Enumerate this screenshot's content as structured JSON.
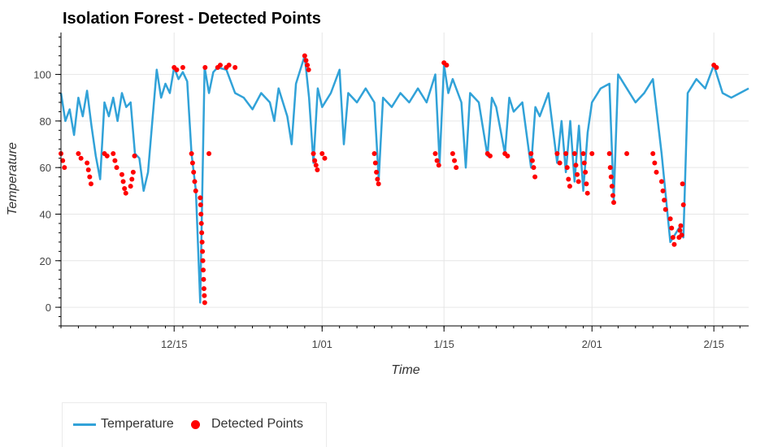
{
  "chart_data": {
    "type": "line",
    "title": "Isolation Forest - Detected Points",
    "xlabel": "Time",
    "ylabel": "Temperature",
    "x_tick_labels": [
      "12/15",
      "1/01",
      "1/15",
      "2/01",
      "2/15"
    ],
    "x_tick_dates": [
      "2013-12-15",
      "2014-01-01",
      "2014-01-15",
      "2014-02-01",
      "2014-02-15"
    ],
    "xlim": [
      "2013-12-02",
      "2014-02-19"
    ],
    "y_ticks": [
      0,
      20,
      40,
      60,
      80,
      100
    ],
    "ylim": [
      -8,
      118
    ],
    "grid": true,
    "legend_position": "bottom-left",
    "colors": {
      "temperature": "#31a2d8",
      "detected": "#ff0000"
    },
    "series": [
      {
        "name": "Temperature",
        "style": "line",
        "points": [
          [
            "2013-12-02",
            92
          ],
          [
            "2013-12-02",
            80
          ],
          [
            "2013-12-03",
            85
          ],
          [
            "2013-12-03",
            74
          ],
          [
            "2013-12-04",
            90
          ],
          [
            "2013-12-04",
            82
          ],
          [
            "2013-12-05",
            93
          ],
          [
            "2013-12-05",
            78
          ],
          [
            "2013-12-06",
            65
          ],
          [
            "2013-12-06",
            55
          ],
          [
            "2013-12-07",
            88
          ],
          [
            "2013-12-07",
            82
          ],
          [
            "2013-12-08",
            90
          ],
          [
            "2013-12-08",
            80
          ],
          [
            "2013-12-09",
            92
          ],
          [
            "2013-12-09",
            86
          ],
          [
            "2013-12-10",
            88
          ],
          [
            "2013-12-10",
            66
          ],
          [
            "2013-12-11",
            64
          ],
          [
            "2013-12-11",
            50
          ],
          [
            "2013-12-12",
            58
          ],
          [
            "2013-12-12",
            80
          ],
          [
            "2013-12-13",
            102
          ],
          [
            "2013-12-13",
            90
          ],
          [
            "2013-12-14",
            96
          ],
          [
            "2013-12-14",
            92
          ],
          [
            "2013-12-15",
            103
          ],
          [
            "2013-12-15",
            98
          ],
          [
            "2013-12-16",
            101
          ],
          [
            "2013-12-16",
            97
          ],
          [
            "2013-12-17",
            66
          ],
          [
            "2013-12-17",
            50
          ],
          [
            "2013-12-18",
            2
          ],
          [
            "2013-12-18",
            103
          ],
          [
            "2013-12-19",
            92
          ],
          [
            "2013-12-19",
            101
          ],
          [
            "2013-12-20",
            103
          ],
          [
            "2013-12-21",
            102
          ],
          [
            "2013-12-22",
            92
          ],
          [
            "2013-12-23",
            90
          ],
          [
            "2013-12-24",
            85
          ],
          [
            "2013-12-25",
            92
          ],
          [
            "2013-12-26",
            88
          ],
          [
            "2013-12-26",
            80
          ],
          [
            "2013-12-27",
            94
          ],
          [
            "2013-12-28",
            82
          ],
          [
            "2013-12-28",
            70
          ],
          [
            "2013-12-29",
            96
          ],
          [
            "2013-12-30",
            108
          ],
          [
            "2013-12-30",
            90
          ],
          [
            "2013-12-31",
            62
          ],
          [
            "2013-12-31",
            94
          ],
          [
            "2014-01-01",
            86
          ],
          [
            "2014-01-02",
            92
          ],
          [
            "2014-01-03",
            102
          ],
          [
            "2014-01-03",
            70
          ],
          [
            "2014-01-04",
            92
          ],
          [
            "2014-01-05",
            88
          ],
          [
            "2014-01-06",
            94
          ],
          [
            "2014-01-07",
            88
          ],
          [
            "2014-01-07",
            55
          ],
          [
            "2014-01-08",
            90
          ],
          [
            "2014-01-09",
            86
          ],
          [
            "2014-01-10",
            92
          ],
          [
            "2014-01-11",
            88
          ],
          [
            "2014-01-12",
            94
          ],
          [
            "2014-01-13",
            88
          ],
          [
            "2014-01-14",
            100
          ],
          [
            "2014-01-14",
            62
          ],
          [
            "2014-01-15",
            104
          ],
          [
            "2014-01-15",
            92
          ],
          [
            "2014-01-16",
            98
          ],
          [
            "2014-01-17",
            88
          ],
          [
            "2014-01-17",
            60
          ],
          [
            "2014-01-18",
            92
          ],
          [
            "2014-01-19",
            88
          ],
          [
            "2014-01-20",
            65
          ],
          [
            "2014-01-20",
            90
          ],
          [
            "2014-01-21",
            86
          ],
          [
            "2014-01-22",
            66
          ],
          [
            "2014-01-22",
            90
          ],
          [
            "2014-01-23",
            84
          ],
          [
            "2014-01-24",
            88
          ],
          [
            "2014-01-25",
            60
          ],
          [
            "2014-01-25",
            86
          ],
          [
            "2014-01-26",
            82
          ],
          [
            "2014-01-27",
            92
          ],
          [
            "2014-01-28",
            62
          ],
          [
            "2014-01-28",
            80
          ],
          [
            "2014-01-29",
            58
          ],
          [
            "2014-01-29",
            80
          ],
          [
            "2014-01-30",
            54
          ],
          [
            "2014-01-30",
            78
          ],
          [
            "2014-01-31",
            50
          ],
          [
            "2014-01-31",
            75
          ],
          [
            "2014-02-01",
            88
          ],
          [
            "2014-02-02",
            94
          ],
          [
            "2014-02-03",
            96
          ],
          [
            "2014-02-03",
            46
          ],
          [
            "2014-02-04",
            100
          ],
          [
            "2014-02-05",
            94
          ],
          [
            "2014-02-06",
            88
          ],
          [
            "2014-02-07",
            92
          ],
          [
            "2014-02-08",
            98
          ],
          [
            "2014-02-09",
            66
          ],
          [
            "2014-02-10",
            28
          ],
          [
            "2014-02-11",
            34
          ],
          [
            "2014-02-11",
            30
          ],
          [
            "2014-02-12",
            92
          ],
          [
            "2014-02-13",
            98
          ],
          [
            "2014-02-14",
            94
          ],
          [
            "2014-02-15",
            104
          ],
          [
            "2014-02-16",
            92
          ],
          [
            "2014-02-17",
            90
          ],
          [
            "2014-02-18",
            92
          ],
          [
            "2014-02-19",
            94
          ]
        ]
      },
      {
        "name": "Detected Points",
        "style": "scatter",
        "points": [
          [
            "2013-12-02",
            66
          ],
          [
            "2013-12-02",
            63
          ],
          [
            "2013-12-02",
            60
          ],
          [
            "2013-12-04",
            66
          ],
          [
            "2013-12-04",
            64
          ],
          [
            "2013-12-05",
            62
          ],
          [
            "2013-12-05",
            59
          ],
          [
            "2013-12-05",
            56
          ],
          [
            "2013-12-05",
            53
          ],
          [
            "2013-12-07",
            66
          ],
          [
            "2013-12-07",
            65
          ],
          [
            "2013-12-08",
            66
          ],
          [
            "2013-12-08",
            63
          ],
          [
            "2013-12-08",
            60
          ],
          [
            "2013-12-09",
            57
          ],
          [
            "2013-12-09",
            54
          ],
          [
            "2013-12-09",
            51
          ],
          [
            "2013-12-09",
            49
          ],
          [
            "2013-12-10",
            52
          ],
          [
            "2013-12-10",
            55
          ],
          [
            "2013-12-10",
            58
          ],
          [
            "2013-12-10",
            65
          ],
          [
            "2013-12-15",
            103
          ],
          [
            "2013-12-15",
            102
          ],
          [
            "2013-12-16",
            103
          ],
          [
            "2013-12-17",
            66
          ],
          [
            "2013-12-17",
            62
          ],
          [
            "2013-12-17",
            58
          ],
          [
            "2013-12-17",
            54
          ],
          [
            "2013-12-17",
            50
          ],
          [
            "2013-12-18",
            47
          ],
          [
            "2013-12-18",
            44
          ],
          [
            "2013-12-18",
            40
          ],
          [
            "2013-12-18",
            36
          ],
          [
            "2013-12-18",
            32
          ],
          [
            "2013-12-18",
            28
          ],
          [
            "2013-12-18",
            24
          ],
          [
            "2013-12-18",
            20
          ],
          [
            "2013-12-18",
            16
          ],
          [
            "2013-12-18",
            12
          ],
          [
            "2013-12-18",
            8
          ],
          [
            "2013-12-18",
            5
          ],
          [
            "2013-12-18",
            2
          ],
          [
            "2013-12-18",
            103
          ],
          [
            "2013-12-19",
            66
          ],
          [
            "2013-12-20",
            103
          ],
          [
            "2013-12-20",
            104
          ],
          [
            "2013-12-21",
            103
          ],
          [
            "2013-12-21",
            104
          ],
          [
            "2013-12-22",
            103
          ],
          [
            "2013-12-30",
            108
          ],
          [
            "2013-12-30",
            106
          ],
          [
            "2013-12-30",
            104
          ],
          [
            "2013-12-30",
            102
          ],
          [
            "2013-12-31",
            66
          ],
          [
            "2013-12-31",
            63
          ],
          [
            "2013-12-31",
            61
          ],
          [
            "2013-12-31",
            59
          ],
          [
            "2014-01-01",
            66
          ],
          [
            "2014-01-01",
            64
          ],
          [
            "2014-01-07",
            66
          ],
          [
            "2014-01-07",
            62
          ],
          [
            "2014-01-07",
            58
          ],
          [
            "2014-01-07",
            55
          ],
          [
            "2014-01-07",
            53
          ],
          [
            "2014-01-14",
            66
          ],
          [
            "2014-01-14",
            63
          ],
          [
            "2014-01-14",
            61
          ],
          [
            "2014-01-15",
            105
          ],
          [
            "2014-01-15",
            104
          ],
          [
            "2014-01-16",
            66
          ],
          [
            "2014-01-16",
            63
          ],
          [
            "2014-01-16",
            60
          ],
          [
            "2014-01-20",
            66
          ],
          [
            "2014-01-20",
            65
          ],
          [
            "2014-01-22",
            66
          ],
          [
            "2014-01-22",
            65
          ],
          [
            "2014-01-25",
            66
          ],
          [
            "2014-01-25",
            63
          ],
          [
            "2014-01-25",
            60
          ],
          [
            "2014-01-25",
            56
          ],
          [
            "2014-01-28",
            66
          ],
          [
            "2014-01-28",
            62
          ],
          [
            "2014-01-29",
            66
          ],
          [
            "2014-01-29",
            60
          ],
          [
            "2014-01-29",
            55
          ],
          [
            "2014-01-29",
            52
          ],
          [
            "2014-01-30",
            66
          ],
          [
            "2014-01-30",
            61
          ],
          [
            "2014-01-30",
            57
          ],
          [
            "2014-01-30",
            54
          ],
          [
            "2014-01-31",
            66
          ],
          [
            "2014-01-31",
            62
          ],
          [
            "2014-01-31",
            58
          ],
          [
            "2014-01-31",
            53
          ],
          [
            "2014-01-31",
            49
          ],
          [
            "2014-02-01",
            66
          ],
          [
            "2014-02-03",
            66
          ],
          [
            "2014-02-03",
            60
          ],
          [
            "2014-02-03",
            56
          ],
          [
            "2014-02-03",
            52
          ],
          [
            "2014-02-03",
            48
          ],
          [
            "2014-02-03",
            45
          ],
          [
            "2014-02-05",
            66
          ],
          [
            "2014-02-08",
            66
          ],
          [
            "2014-02-08",
            62
          ],
          [
            "2014-02-08",
            58
          ],
          [
            "2014-02-09",
            54
          ],
          [
            "2014-02-09",
            50
          ],
          [
            "2014-02-09",
            46
          ],
          [
            "2014-02-09",
            42
          ],
          [
            "2014-02-10",
            38
          ],
          [
            "2014-02-10",
            34
          ],
          [
            "2014-02-10",
            30
          ],
          [
            "2014-02-10",
            27
          ],
          [
            "2014-02-11",
            30
          ],
          [
            "2014-02-11",
            33
          ],
          [
            "2014-02-11",
            35
          ],
          [
            "2014-02-11",
            31
          ],
          [
            "2014-02-11",
            53
          ],
          [
            "2014-02-11",
            44
          ],
          [
            "2014-02-15",
            104
          ],
          [
            "2014-02-15",
            103
          ]
        ]
      }
    ]
  },
  "legend": {
    "temperature_label": "Temperature",
    "detected_label": "Detected Points"
  }
}
